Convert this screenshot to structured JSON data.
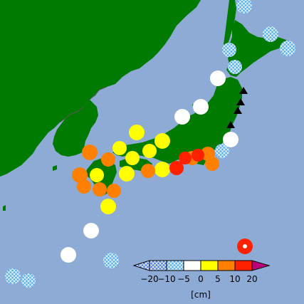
{
  "map": {
    "colors": {
      "sea": "#8eabd6",
      "land": "#007a00",
      "border": "#5a5a5a",
      "hatch_bg": "#58b0f2",
      "hatch_line": "#ffffff"
    },
    "markers": [
      {
        "category": "-20 to -10",
        "hatch": true,
        "color": "#58b0f2"
      },
      {
        "category": "-10 to -5",
        "hatch": true,
        "color": "#58b0f2"
      },
      {
        "category": "-5 to 0",
        "color": "#ffffff"
      },
      {
        "category": "0 to 5",
        "color": "#ffff00"
      },
      {
        "category": "5 to 10",
        "color": "#ff8000"
      },
      {
        "category": "10 to 20",
        "color": "#ff2000"
      }
    ],
    "station_triangle_color": "#000000"
  },
  "colorbar": {
    "tick_labels": [
      "−20",
      "−10",
      "−5",
      "0",
      "5",
      "10",
      "20"
    ],
    "unit_label": "[cm]",
    "bins": [
      {
        "color": "#4f7fe8",
        "hatch": true
      },
      {
        "color": "#58b0f2",
        "hatch": true
      },
      {
        "color": "#ffffff"
      },
      {
        "color": "#ffff00"
      },
      {
        "color": "#ff8000"
      },
      {
        "color": "#ff2000"
      }
    ],
    "low_extend_color": "#2f5fd0",
    "high_extend_color": "#c0007a"
  }
}
